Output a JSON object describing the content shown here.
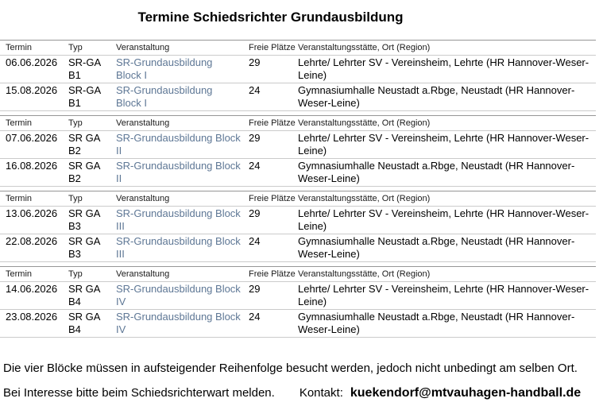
{
  "title": "Termine Schiedsrichter Grundausbildung",
  "columns": [
    "Termin",
    "Typ",
    "Veranstaltung",
    "Freie Plätze",
    "Veranstaltungsstätte, Ort (Region)"
  ],
  "sections": [
    {
      "rows": [
        {
          "termin": "06.06.2026",
          "typ": "SR-GA\nB1",
          "veranstaltung": "SR-Grundausbildung\nBlock I",
          "freie_plaetze": "29",
          "ort": "Lehrte/ Lehrter SV - Vereinsheim, Lehrte (HR Hannover-Weser-\nLeine)"
        },
        {
          "termin": "15.08.2026",
          "typ": "SR-GA\nB1",
          "veranstaltung": "SR-Grundausbildung\nBlock I",
          "freie_plaetze": "24",
          "ort": "Gymnasiumhalle Neustadt a.Rbge, Neustadt (HR Hannover-\nWeser-Leine)"
        }
      ]
    },
    {
      "rows": [
        {
          "termin": "07.06.2026",
          "typ": "SR GA\nB2",
          "veranstaltung": "SR-Grundausbildung Block\nII",
          "freie_plaetze": "29",
          "ort": "Lehrte/ Lehrter SV - Vereinsheim, Lehrte (HR Hannover-Weser-\nLeine)"
        },
        {
          "termin": "16.08.2026",
          "typ": "SR GA\nB2",
          "veranstaltung": "SR-Grundausbildung Block\nII",
          "freie_plaetze": "24",
          "ort": "Gymnasiumhalle Neustadt a.Rbge, Neustadt (HR Hannover-\nWeser-Leine)"
        }
      ]
    },
    {
      "rows": [
        {
          "termin": "13.06.2026",
          "typ": "SR GA\nB3",
          "veranstaltung": "SR-Grundausbildung Block\nIII",
          "freie_plaetze": "29",
          "ort": "Lehrte/ Lehrter SV - Vereinsheim, Lehrte (HR Hannover-Weser-\nLeine)"
        },
        {
          "termin": "22.08.2026",
          "typ": "SR GA\nB3",
          "veranstaltung": "SR-Grundausbildung Block\nIII",
          "freie_plaetze": "24",
          "ort": "Gymnasiumhalle Neustadt a.Rbge, Neustadt (HR Hannover-\nWeser-Leine)"
        }
      ]
    },
    {
      "rows": [
        {
          "termin": "14.06.2026",
          "typ": "SR GA\nB4",
          "veranstaltung": "SR-Grundausbildung Block\nIV",
          "freie_plaetze": "29",
          "ort": "Lehrte/ Lehrter SV - Vereinsheim, Lehrte (HR Hannover-Weser-\nLeine)"
        },
        {
          "termin": "23.08.2026",
          "typ": "SR GA\nB4",
          "veranstaltung": "SR-Grundausbildung Block\nIV",
          "freie_plaetze": "24",
          "ort": "Gymnasiumhalle Neustadt a.Rbge, Neustadt (HR Hannover-\nWeser-Leine)"
        }
      ]
    }
  ],
  "footer": {
    "line1": "Die vier Blöcke müssen in aufsteigender Reihenfolge besucht werden, jedoch nicht unbedingt am selben Ort.",
    "line2_text": "Bei Interesse bitte beim Schiedsrichterwart melden.",
    "kontakt_label": "Kontakt:",
    "email": "kuekendorf@mtvauhagen-handball.de"
  },
  "colors": {
    "link": "#5e7795",
    "section_top_border": "#969696",
    "row_border": "#cbcbcb"
  }
}
